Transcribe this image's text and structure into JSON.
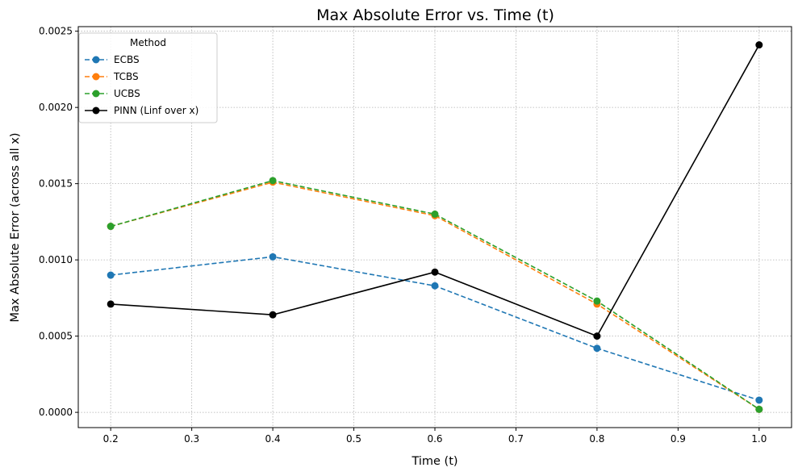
{
  "chart_data": {
    "type": "line",
    "title": "Max Absolute Error vs. Time (t)",
    "xlabel": "Time (t)",
    "ylabel": "Max Absolute Error (across all x)",
    "xlim": [
      0.16,
      1.04
    ],
    "ylim": [
      -0.0001,
      0.00253
    ],
    "xticks": [
      0.2,
      0.3,
      0.4,
      0.5,
      0.6,
      0.7,
      0.8,
      0.9,
      1.0
    ],
    "xtick_labels": [
      "0.2",
      "0.3",
      "0.4",
      "0.5",
      "0.6",
      "0.7",
      "0.8",
      "0.9",
      "1.0"
    ],
    "yticks": [
      0.0,
      0.0005,
      0.001,
      0.0015,
      0.002,
      0.0025
    ],
    "ytick_labels": [
      "0.0000",
      "0.0005",
      "0.0010",
      "0.0015",
      "0.0020",
      "0.0025"
    ],
    "grid": true,
    "legend": {
      "title": "Method",
      "position": "top-left"
    },
    "x": [
      0.2,
      0.4,
      0.6,
      0.8,
      1.0
    ],
    "series": [
      {
        "name": "ECBS",
        "values": [
          0.0009,
          0.00102,
          0.00083,
          0.00042,
          8e-05
        ],
        "color": "#1f77b4",
        "style": "dashed"
      },
      {
        "name": "TCBS",
        "values": [
          0.00122,
          0.00151,
          0.00129,
          0.00071,
          2e-05
        ],
        "color": "#ff7f0e",
        "style": "dashed"
      },
      {
        "name": "UCBS",
        "values": [
          0.00122,
          0.00152,
          0.0013,
          0.00073,
          2e-05
        ],
        "color": "#2ca02c",
        "style": "dashed"
      },
      {
        "name": "PINN (Linf over x)",
        "values": [
          0.00071,
          0.00064,
          0.00092,
          0.0005,
          0.00241
        ],
        "color": "#000000",
        "style": "solid"
      }
    ]
  }
}
